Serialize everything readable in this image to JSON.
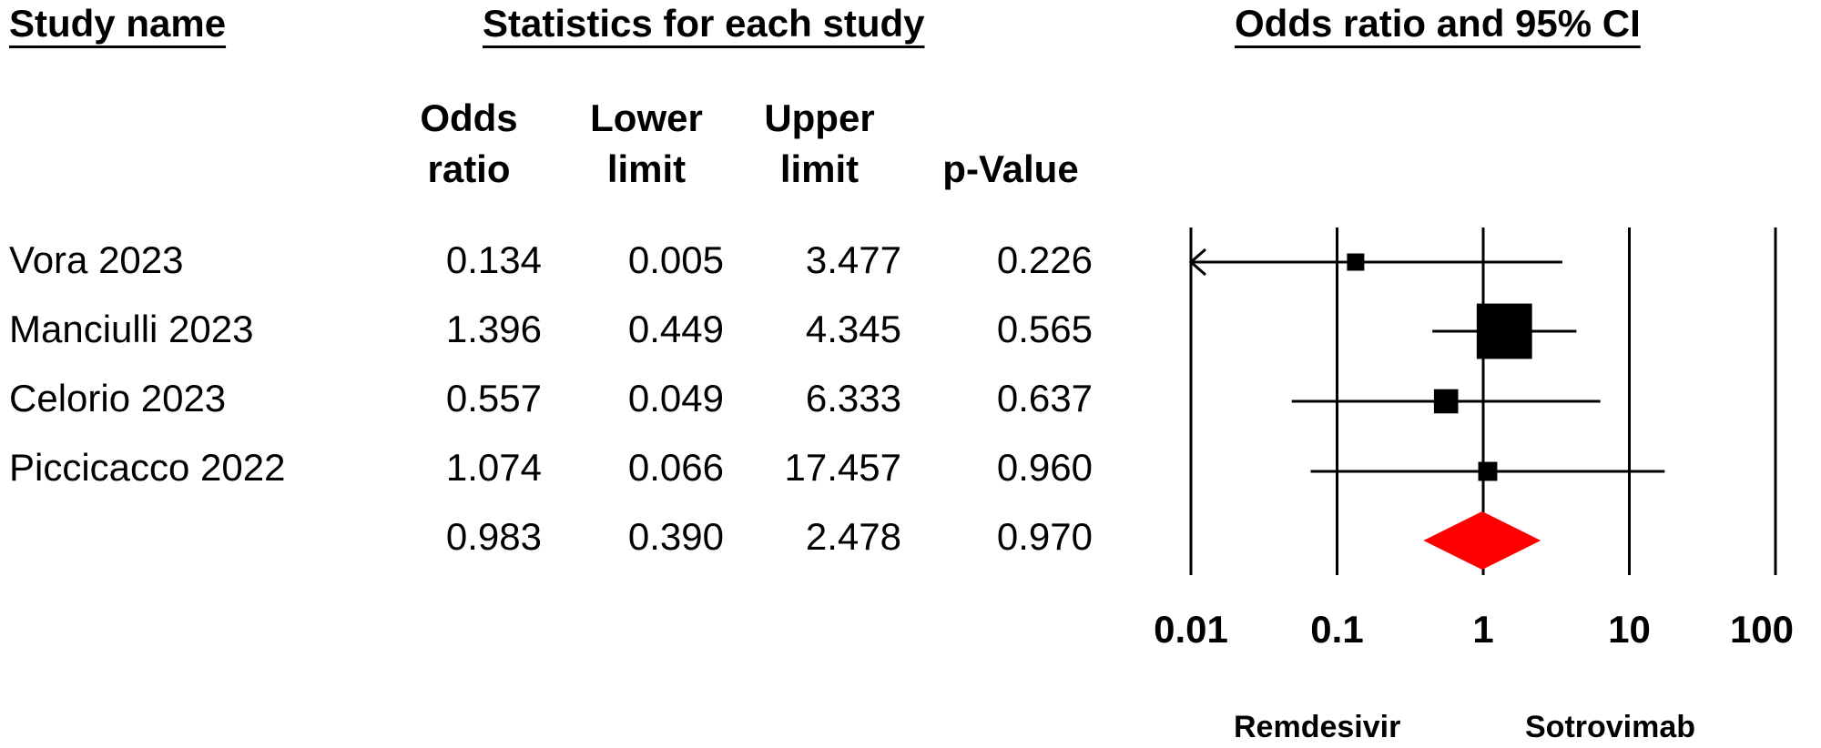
{
  "headers": {
    "study": "Study name",
    "stats": "Statistics for each study",
    "plot": "Odds ratio and 95% CI"
  },
  "columns": {
    "or": [
      "Odds",
      "ratio"
    ],
    "lower": [
      "Lower",
      "limit"
    ],
    "upper": [
      "Upper",
      "limit"
    ],
    "p": [
      "",
      "p-Value"
    ]
  },
  "favours": {
    "left": "Remdesivir",
    "right": "Sotrovimab"
  },
  "colors": {
    "summary": "#ff0000",
    "marker": "#000000"
  },
  "chart_data": {
    "type": "forest",
    "xscale": "log",
    "xticks": [
      "0.01",
      "0.1",
      "1",
      "10",
      "100"
    ],
    "xlim": [
      0.01,
      100
    ],
    "reference_line": 1,
    "studies": [
      {
        "name": "Vora 2023",
        "or": "0.134",
        "lower": "0.005",
        "upper": "3.477",
        "p": "0.226",
        "weight": 1
      },
      {
        "name": "Manciulli 2023",
        "or": "1.396",
        "lower": "0.449",
        "upper": "4.345",
        "p": "0.565",
        "weight": 3.2
      },
      {
        "name": "Celorio 2023",
        "or": "0.557",
        "lower": "0.049",
        "upper": "6.333",
        "p": "0.637",
        "weight": 1.4
      },
      {
        "name": "Piccicacco 2022",
        "or": "1.074",
        "lower": "0.066",
        "upper": "17.457",
        "p": "0.960",
        "weight": 1.1
      }
    ],
    "summary": {
      "or": "0.983",
      "lower": "0.390",
      "upper": "2.478",
      "p": "0.970"
    }
  }
}
